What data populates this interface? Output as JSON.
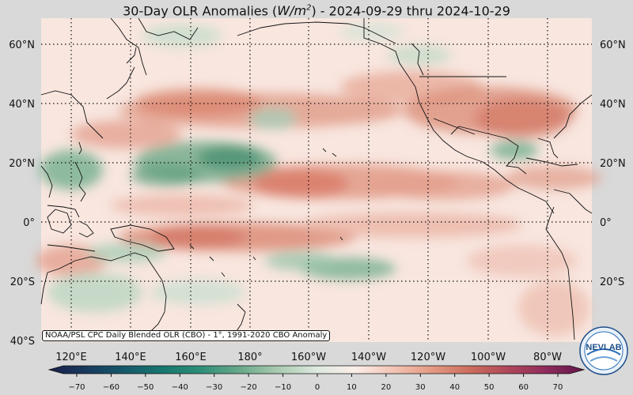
{
  "title": {
    "prefix": "30-Day OLR Anomalies (",
    "unit_base": "W/m",
    "unit_exp": "2",
    "suffix": ") - 2024-09-29 thru 2024-10-29"
  },
  "map": {
    "lat_labels": [
      "60°N",
      "40°N",
      "20°N",
      "0°",
      "20°S",
      "40°S"
    ],
    "lon_labels": [
      "120°E",
      "140°E",
      "160°E",
      "180°",
      "160°W",
      "140°W",
      "120°W",
      "100°W",
      "80°W"
    ]
  },
  "credit": "NOAA/PSL CPC Daily Blended OLR (CBO) - 1°, 1991-2020 CBO Anomaly",
  "colorbar": {
    "ticks": [
      "−70",
      "−60",
      "−50",
      "−40",
      "−30",
      "−20",
      "−10",
      "0",
      "10",
      "20",
      "30",
      "40",
      "50",
      "60",
      "70"
    ],
    "colors": [
      "#1b1f4a",
      "#173a5e",
      "#165a6a",
      "#17776f",
      "#2f8f78",
      "#6aa98b",
      "#a9cbb0",
      "#dde9df",
      "#fbeee9",
      "#f2c5b5",
      "#e49a83",
      "#cc6e5e",
      "#b0485a",
      "#8f2c5c",
      "#62164c"
    ]
  },
  "logo": {
    "text": "NEVLAB",
    "icon": "noaa-psl-globe-logo"
  },
  "colors": {
    "ocean_base": "#f7e3dc",
    "positive_anomaly": "#d97a66",
    "negative_anomaly": "#5e9e7c"
  }
}
